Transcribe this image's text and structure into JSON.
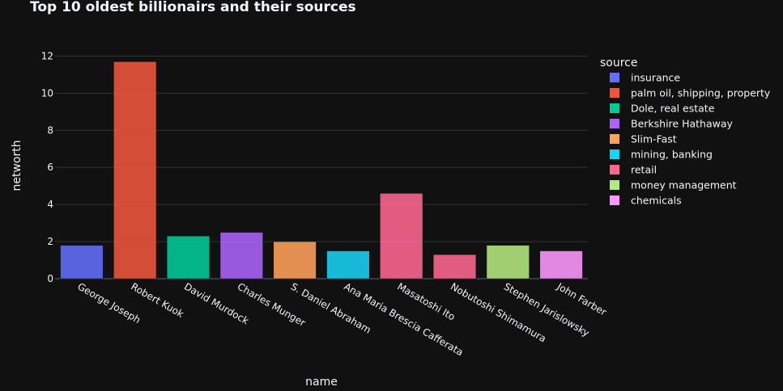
{
  "chart_data": {
    "type": "bar",
    "title": "Top 10 oldest billionairs and their sources",
    "xlabel": "name",
    "ylabel": "networth",
    "ylim": [
      0,
      12.5
    ],
    "yticks": [
      0,
      2,
      4,
      6,
      8,
      10,
      12
    ],
    "grid": true,
    "legend_title": "source",
    "legend_placement": "right",
    "bars": [
      {
        "name": "George Joseph",
        "value": 1.8,
        "source": "insurance"
      },
      {
        "name": "Robert Kuok",
        "value": 11.7,
        "source": "palm oil, shipping, property"
      },
      {
        "name": "David Murdock",
        "value": 2.3,
        "source": "Dole, real estate"
      },
      {
        "name": "Charles Munger",
        "value": 2.5,
        "source": "Berkshire Hathaway"
      },
      {
        "name": "S. Daniel Abraham",
        "value": 2.0,
        "source": "Slim-Fast"
      },
      {
        "name": "Ana Maria Brescia Cafferata",
        "value": 1.5,
        "source": "mining, banking"
      },
      {
        "name": "Masatoshi Ito",
        "value": 4.6,
        "source": "retail"
      },
      {
        "name": "Nobutoshi Shimamura",
        "value": 1.3,
        "source": "retail"
      },
      {
        "name": "Stephen Jarislowsky",
        "value": 1.8,
        "source": "money management"
      },
      {
        "name": "John Farber",
        "value": 1.5,
        "source": "chemicals"
      }
    ],
    "legend": [
      {
        "label": "insurance",
        "color": "#636efa"
      },
      {
        "label": "palm oil, shipping, property",
        "color": "#EF553B"
      },
      {
        "label": "Dole, real estate",
        "color": "#00cc96"
      },
      {
        "label": "Berkshire Hathaway",
        "color": "#ab63fa"
      },
      {
        "label": "Slim-Fast",
        "color": "#FFA15A"
      },
      {
        "label": "mining, banking",
        "color": "#19d3f3"
      },
      {
        "label": "retail",
        "color": "#FF6692"
      },
      {
        "label": "money management",
        "color": "#B6E880"
      },
      {
        "label": "chemicals",
        "color": "#FF97FF"
      }
    ]
  }
}
